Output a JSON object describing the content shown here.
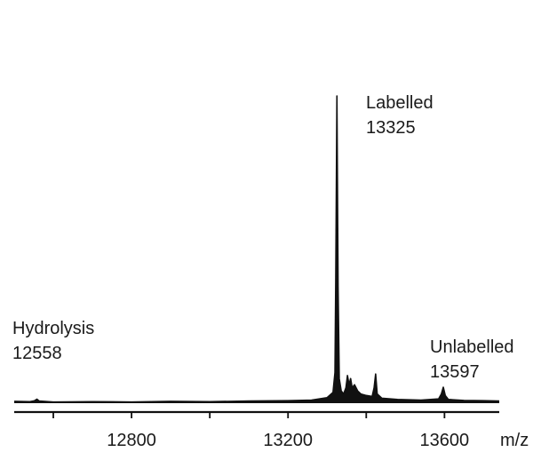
{
  "chart_data": {
    "type": "line",
    "title": "",
    "xlabel": "m/z",
    "ylabel": "",
    "xlim": [
      12500,
      13740
    ],
    "ylim": [
      0,
      100
    ],
    "x_ticks": [
      12800,
      13200,
      13600
    ],
    "x_minor_ticks": [
      12600,
      13000,
      13400
    ],
    "tick_labels": [
      "12800",
      "13200",
      "13600"
    ],
    "grid": false,
    "legend": "none",
    "series": [
      {
        "color": "#111111",
        "points": [
          [
            12500,
            0.6
          ],
          [
            12540,
            0.5
          ],
          [
            12552,
            0.8
          ],
          [
            12558,
            1.3
          ],
          [
            12564,
            0.7
          ],
          [
            12600,
            0.4
          ],
          [
            12700,
            0.5
          ],
          [
            12800,
            0.4
          ],
          [
            12900,
            0.6
          ],
          [
            13000,
            0.5
          ],
          [
            13100,
            0.7
          ],
          [
            13200,
            0.8
          ],
          [
            13260,
            1.0
          ],
          [
            13300,
            1.8
          ],
          [
            13315,
            3.5
          ],
          [
            13320,
            10
          ],
          [
            13322,
            40
          ],
          [
            13325,
            100
          ],
          [
            13328,
            38
          ],
          [
            13331,
            8
          ],
          [
            13336,
            4
          ],
          [
            13342,
            3
          ],
          [
            13348,
            5
          ],
          [
            13352,
            9
          ],
          [
            13356,
            6
          ],
          [
            13360,
            8
          ],
          [
            13364,
            5
          ],
          [
            13370,
            6
          ],
          [
            13378,
            4
          ],
          [
            13386,
            3
          ],
          [
            13400,
            2.5
          ],
          [
            13415,
            2.2
          ],
          [
            13420,
            5
          ],
          [
            13424,
            9.5
          ],
          [
            13428,
            3
          ],
          [
            13440,
            1.6
          ],
          [
            13480,
            1.2
          ],
          [
            13540,
            1.0
          ],
          [
            13585,
            1.4
          ],
          [
            13592,
            3
          ],
          [
            13597,
            5.2
          ],
          [
            13602,
            2.5
          ],
          [
            13610,
            1.2
          ],
          [
            13650,
            0.9
          ],
          [
            13700,
            0.8
          ],
          [
            13740,
            0.7
          ]
        ]
      }
    ],
    "annotations": [
      {
        "line1": "Hydrolysis",
        "line2": "12558"
      },
      {
        "line1": "Labelled",
        "line2": "13325"
      },
      {
        "line1": "Unlabelled",
        "line2": "13597"
      }
    ]
  }
}
